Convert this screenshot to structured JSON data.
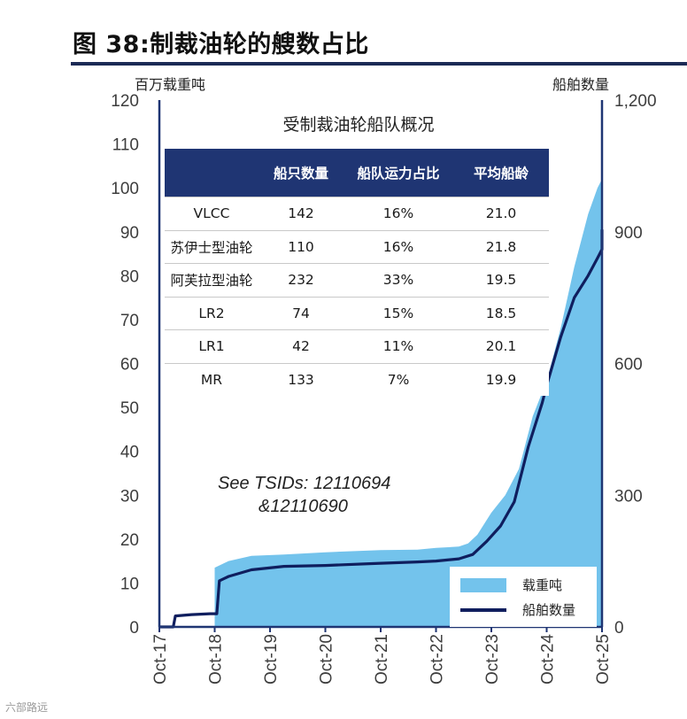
{
  "figure": {
    "title": "图 38:制裁油轮的艘数占比",
    "watermark": "六部路远"
  },
  "chart_data": {
    "type": "area",
    "left_axis_unit": "百万载重吨",
    "right_axis_unit": "船舶数量",
    "y_left": {
      "min": 0,
      "max": 120,
      "ticks": [
        0,
        10,
        20,
        30,
        40,
        50,
        60,
        70,
        80,
        90,
        100,
        110,
        120
      ],
      "tick_labels": [
        "0",
        "10",
        "20",
        "30",
        "40",
        "50",
        "60",
        "70",
        "80",
        "90",
        "100",
        "110",
        "120"
      ]
    },
    "y_right": {
      "min": 0,
      "max": 1200,
      "ticks": [
        0,
        300,
        600,
        900,
        1200
      ],
      "tick_labels": [
        "0",
        "300",
        "600",
        "900",
        "1,200"
      ]
    },
    "x": {
      "tick_labels": [
        "Oct-17",
        "Oct-18",
        "Oct-19",
        "Oct-20",
        "Oct-21",
        "Oct-22",
        "Oct-23",
        "Oct-24",
        "Oct-25"
      ]
    },
    "grid": false,
    "legend_position": "bottom-right",
    "colors": {
      "area": "#73c3ec",
      "line": "#0f1e5e",
      "axis": "#1f3573"
    },
    "series": [
      {
        "name": "载重吨",
        "axis": "left",
        "kind": "area",
        "points": [
          [
            "2018-10-01",
            0
          ],
          [
            "2018-10-01",
            13.5
          ],
          [
            "2019-01-01",
            15
          ],
          [
            "2019-06-01",
            16.2
          ],
          [
            "2020-01-01",
            16.5
          ],
          [
            "2020-10-01",
            17
          ],
          [
            "2021-10-01",
            17.5
          ],
          [
            "2022-06-01",
            17.6
          ],
          [
            "2022-10-01",
            18
          ],
          [
            "2023-03-01",
            18.3
          ],
          [
            "2023-05-01",
            19
          ],
          [
            "2023-07-01",
            21
          ],
          [
            "2023-10-01",
            26
          ],
          [
            "2024-01-01",
            30
          ],
          [
            "2024-04-01",
            36
          ],
          [
            "2024-07-01",
            48
          ],
          [
            "2024-10-01",
            56
          ],
          [
            "2025-01-01",
            68
          ],
          [
            "2025-04-01",
            82
          ],
          [
            "2025-07-01",
            94
          ],
          [
            "2025-09-01",
            100
          ],
          [
            "2025-10-15",
            102
          ],
          [
            "2025-10-31",
            105
          ]
        ]
      },
      {
        "name": "船舶数量",
        "axis": "right",
        "kind": "line",
        "points": [
          [
            "2017-10-01",
            0
          ],
          [
            "2018-01-01",
            0
          ],
          [
            "2018-01-15",
            25
          ],
          [
            "2018-05-01",
            28
          ],
          [
            "2018-09-01",
            30
          ],
          [
            "2018-10-15",
            30
          ],
          [
            "2018-11-01",
            105
          ],
          [
            "2019-01-01",
            115
          ],
          [
            "2019-06-01",
            130
          ],
          [
            "2020-01-01",
            138
          ],
          [
            "2020-10-01",
            140
          ],
          [
            "2021-10-01",
            145
          ],
          [
            "2022-06-01",
            148
          ],
          [
            "2022-10-01",
            150
          ],
          [
            "2023-03-01",
            155
          ],
          [
            "2023-06-01",
            165
          ],
          [
            "2023-09-01",
            195
          ],
          [
            "2023-12-01",
            230
          ],
          [
            "2024-03-01",
            285
          ],
          [
            "2024-06-01",
            410
          ],
          [
            "2024-09-01",
            510
          ],
          [
            "2024-10-01",
            550
          ],
          [
            "2025-01-01",
            660
          ],
          [
            "2025-04-01",
            750
          ],
          [
            "2025-07-01",
            800
          ],
          [
            "2025-09-01",
            840
          ],
          [
            "2025-10-15",
            860
          ],
          [
            "2025-10-31",
            905
          ]
        ]
      }
    ],
    "annotation": [
      "See TSIDs: 12110694",
      "&12110690"
    ],
    "inset_table": {
      "title": "受制裁油轮船队概况",
      "headers": [
        "",
        "船只数量",
        "船队运力占比",
        "平均船龄"
      ],
      "rows": [
        [
          "VLCC",
          "142",
          "16%",
          "21.0"
        ],
        [
          "苏伊士型油轮",
          "110",
          "16%",
          "21.8"
        ],
        [
          "阿芙拉型油轮",
          "232",
          "33%",
          "19.5"
        ],
        [
          "LR2",
          "74",
          "15%",
          "18.5"
        ],
        [
          "LR1",
          "42",
          "11%",
          "20.1"
        ],
        [
          "MR",
          "133",
          "7%",
          "19.9"
        ]
      ]
    }
  }
}
